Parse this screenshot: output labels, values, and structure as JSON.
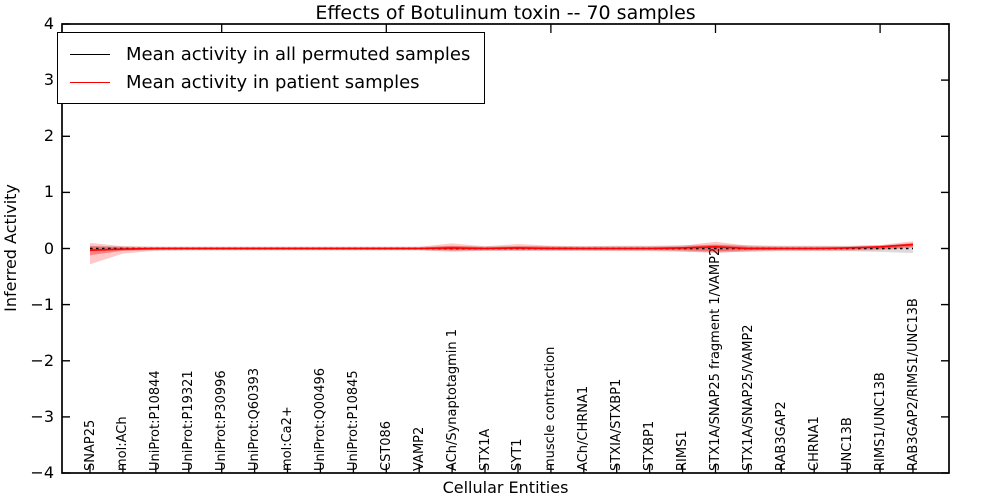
{
  "figure": {
    "title": "Effects of Botulinum toxin -- 70 samples"
  },
  "legend": {
    "entries": [
      {
        "label": "Mean activity in all permuted samples",
        "color": "#000000"
      },
      {
        "label": "Mean activity in patient samples",
        "color": "#ff0000"
      }
    ]
  },
  "chart_data": {
    "type": "line",
    "title": "Effects of Botulinum toxin -- 70 samples",
    "xlabel": "Cellular Entities",
    "ylabel": "Inferred Activity",
    "ylim": [
      -4,
      4
    ],
    "yticks": [
      -4,
      -3,
      -2,
      -1,
      0,
      1,
      2,
      3,
      4
    ],
    "ytick_labels": [
      "−4",
      "−3",
      "−2",
      "−1",
      "0",
      "1",
      "2",
      "3",
      "4"
    ],
    "grid": false,
    "legend_position": "upper left",
    "top_tick_indices": [
      4,
      9,
      14,
      19,
      24
    ],
    "categories": [
      "SNAP25",
      "mol:ACh",
      "UniProt:P10844",
      "UniProt:P19321",
      "UniProt:P30996",
      "UniProt:Q60393",
      "mol:Ca2+",
      "UniProt:Q00496",
      "UniProt:P10845",
      "CST086",
      "VAMP2",
      "ACh/Synaptotagmin 1",
      "STX1A",
      "SYT1",
      "muscle contraction",
      "ACh/CHRNA1",
      "STXIA/STXBP1",
      "STXBP1",
      "RIMS1",
      "STX1A/SNAP25 fragment 1/VAMP2",
      "STX1A/SNAP25/VAMP2",
      "RAB3GAP2",
      "CHRNA1",
      "UNC13B",
      "RIMS1/UNC13B",
      "RAB3GAP2/RIMS1/UNC13B"
    ],
    "series": [
      {
        "name": "Mean activity in all permuted samples",
        "color": "#000000",
        "style": "dotted",
        "width": 1.4,
        "values": [
          0,
          0,
          0,
          0,
          0,
          0,
          0,
          0,
          0,
          0,
          0,
          0,
          0,
          0,
          0,
          0,
          0,
          0,
          0,
          0,
          0,
          0,
          0,
          0,
          0,
          0
        ]
      },
      {
        "name": "Mean activity in patient samples",
        "color": "#ff0000",
        "style": "solid",
        "width": 1.6,
        "values": [
          -0.03,
          -0.01,
          0,
          0,
          0,
          0,
          0,
          0,
          0,
          0,
          0,
          0.01,
          0,
          0.01,
          0,
          0,
          0,
          0,
          0.01,
          0.03,
          0,
          0,
          0,
          0.01,
          0.03,
          0.07
        ]
      }
    ],
    "bands": [
      {
        "name": "permuted-samples-std",
        "color": "#000000",
        "opacity": 0.14,
        "upper": [
          0.05,
          0.04,
          0.03,
          0.03,
          0.03,
          0.03,
          0.03,
          0.03,
          0.03,
          0.03,
          0.03,
          0.04,
          0.04,
          0.04,
          0.04,
          0.04,
          0.05,
          0.05,
          0.06,
          0.07,
          0.06,
          0.05,
          0.05,
          0.05,
          0.06,
          0.08
        ],
        "lower": [
          -0.05,
          -0.04,
          -0.03,
          -0.03,
          -0.03,
          -0.03,
          -0.03,
          -0.03,
          -0.03,
          -0.03,
          -0.03,
          -0.04,
          -0.04,
          -0.04,
          -0.04,
          -0.04,
          -0.05,
          -0.05,
          -0.06,
          -0.07,
          -0.06,
          -0.05,
          -0.05,
          -0.05,
          -0.06,
          -0.08
        ]
      },
      {
        "name": "patient-samples-std-outer",
        "color": "#ff0000",
        "opacity": 0.22,
        "upper": [
          0.1,
          0.04,
          0.03,
          0.03,
          0.03,
          0.03,
          0.03,
          0.03,
          0.03,
          0.03,
          0.03,
          0.09,
          0.04,
          0.08,
          0.05,
          0.04,
          0.04,
          0.04,
          0.05,
          0.12,
          0.05,
          0.04,
          0.04,
          0.04,
          0.06,
          0.13
        ],
        "lower": [
          -0.28,
          -0.09,
          -0.04,
          -0.03,
          -0.03,
          -0.03,
          -0.03,
          -0.03,
          -0.03,
          -0.03,
          -0.03,
          -0.06,
          -0.04,
          -0.04,
          -0.04,
          -0.04,
          -0.04,
          -0.04,
          -0.05,
          -0.08,
          -0.05,
          -0.04,
          -0.04,
          -0.04,
          -0.03,
          0.01
        ],
        "legend": false
      },
      {
        "name": "patient-samples-std-inner",
        "color": "#ff0000",
        "opacity": 0.35,
        "upper": [
          0.04,
          0.02,
          0.015,
          0.015,
          0.015,
          0.015,
          0.015,
          0.015,
          0.015,
          0.015,
          0.015,
          0.05,
          0.02,
          0.04,
          0.03,
          0.02,
          0.02,
          0.02,
          0.03,
          0.07,
          0.03,
          0.02,
          0.02,
          0.02,
          0.04,
          0.1
        ],
        "lower": [
          -0.12,
          -0.04,
          -0.02,
          -0.015,
          -0.015,
          -0.015,
          -0.015,
          -0.015,
          -0.015,
          -0.015,
          -0.015,
          -0.03,
          -0.02,
          -0.02,
          -0.02,
          -0.02,
          -0.02,
          -0.02,
          -0.03,
          -0.05,
          -0.03,
          -0.02,
          -0.02,
          -0.02,
          -0.01,
          0.03
        ]
      }
    ]
  }
}
